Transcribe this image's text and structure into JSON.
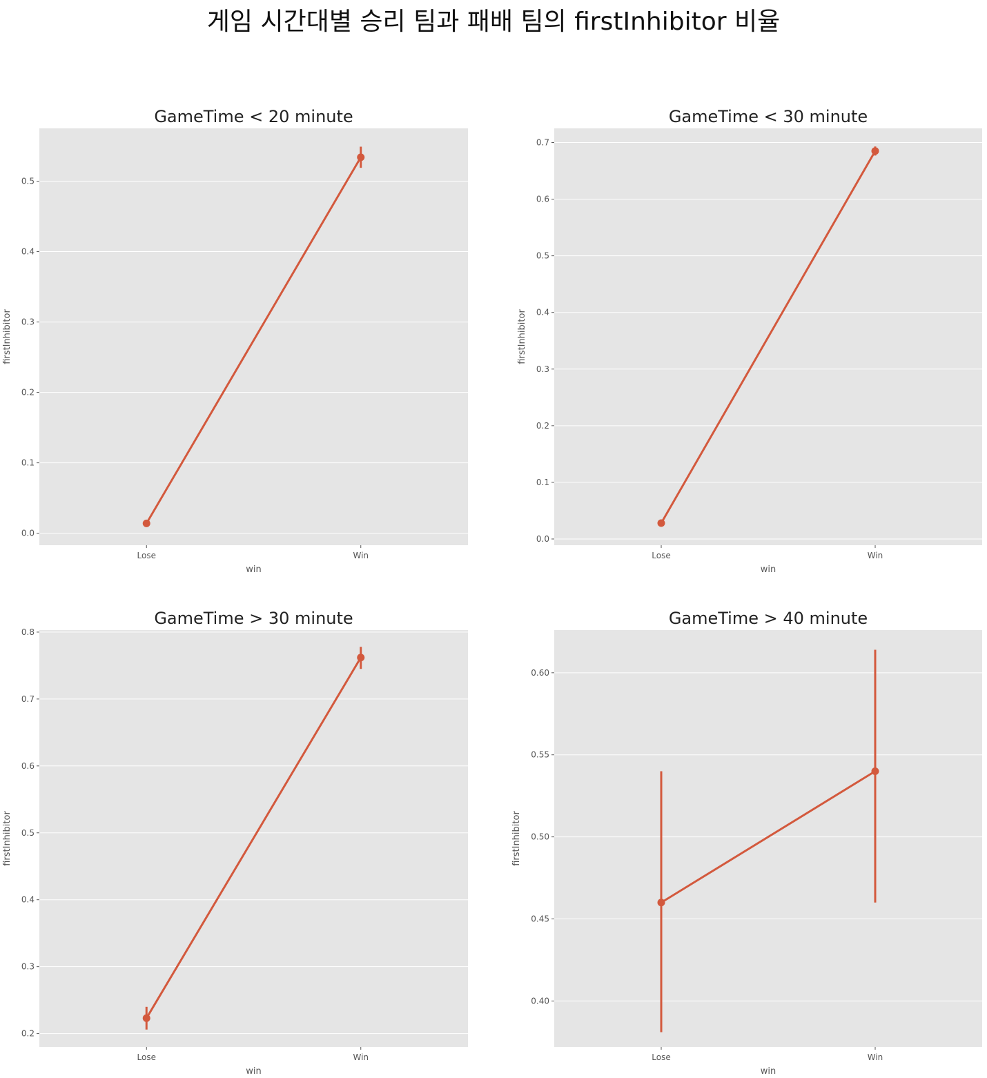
{
  "suptitle": "게임 시간대별 승리 팀과 패배 팀의 firstInhibitor 비율",
  "colors": {
    "panel_bg": "#e5e5e5",
    "grid": "#ffffff",
    "series": "#d3593d"
  },
  "chart_data": [
    {
      "type": "line",
      "title": "GameTime < 20 minute",
      "xlabel": "win",
      "ylabel": "firstInhibitor",
      "categories": [
        "Lose",
        "Win"
      ],
      "values": [
        0.014,
        0.534
      ],
      "error_low": [
        0.01,
        0.519
      ],
      "error_high": [
        0.018,
        0.549
      ],
      "ylim": [
        -0.017,
        0.575
      ],
      "yticks": [
        0.0,
        0.1,
        0.2,
        0.3,
        0.4,
        0.5
      ],
      "ytick_labels": [
        "0.0",
        "0.1",
        "0.2",
        "0.3",
        "0.4",
        "0.5"
      ],
      "grid": true
    },
    {
      "type": "line",
      "title": "GameTime < 30 minute",
      "xlabel": "win",
      "ylabel": "firstInhibitor",
      "categories": [
        "Lose",
        "Win"
      ],
      "values": [
        0.028,
        0.685
      ],
      "error_low": [
        0.025,
        0.677
      ],
      "error_high": [
        0.031,
        0.693
      ],
      "ylim": [
        -0.011,
        0.725
      ],
      "yticks": [
        0.0,
        0.1,
        0.2,
        0.3,
        0.4,
        0.5,
        0.6,
        0.7
      ],
      "ytick_labels": [
        "0.0",
        "0.1",
        "0.2",
        "0.3",
        "0.4",
        "0.5",
        "0.6",
        "0.7"
      ],
      "grid": true
    },
    {
      "type": "line",
      "title": "GameTime > 30 minute",
      "xlabel": "win",
      "ylabel": "firstInhibitor",
      "categories": [
        "Lose",
        "Win"
      ],
      "values": [
        0.223,
        0.762
      ],
      "error_low": [
        0.206,
        0.745
      ],
      "error_high": [
        0.24,
        0.778
      ],
      "ylim": [
        0.18,
        0.803
      ],
      "yticks": [
        0.2,
        0.3,
        0.4,
        0.5,
        0.6,
        0.7,
        0.8
      ],
      "ytick_labels": [
        "0.2",
        "0.3",
        "0.4",
        "0.5",
        "0.6",
        "0.7",
        "0.8"
      ],
      "grid": true
    },
    {
      "type": "line",
      "title": "GameTime > 40 minute",
      "xlabel": "win",
      "ylabel": "firstInhibitor",
      "categories": [
        "Lose",
        "Win"
      ],
      "values": [
        0.46,
        0.54
      ],
      "error_low": [
        0.381,
        0.46
      ],
      "error_high": [
        0.54,
        0.614
      ],
      "ylim": [
        0.372,
        0.626
      ],
      "yticks": [
        0.4,
        0.45,
        0.5,
        0.55,
        0.6
      ],
      "ytick_labels": [
        "0.40",
        "0.45",
        "0.50",
        "0.55",
        "0.60"
      ],
      "grid": true
    }
  ]
}
